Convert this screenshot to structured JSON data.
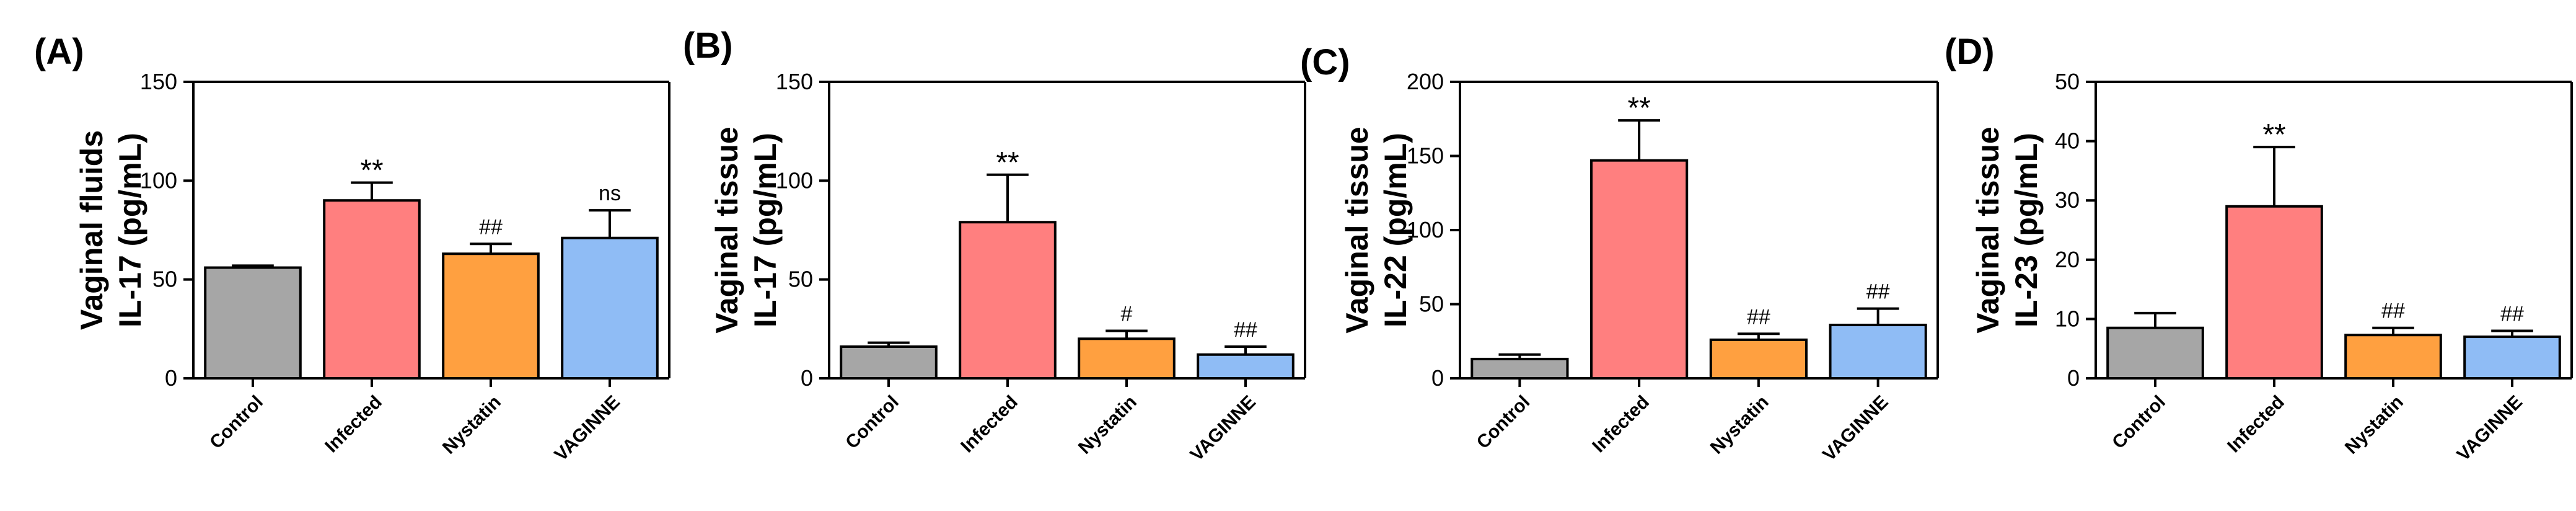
{
  "chart_data": [
    {
      "type": "bar",
      "panel_label": "(A)",
      "ylabel_lines": [
        "Vaginal fluids",
        "IL-17 (pg/mL)"
      ],
      "categories": [
        "Control",
        "Infected",
        "Nystatin",
        "VAGINNE"
      ],
      "values": [
        56,
        90,
        63,
        71
      ],
      "errors": [
        1,
        9,
        5,
        14
      ],
      "annotations": [
        "",
        "**",
        "##",
        "ns"
      ],
      "ylim": [
        0,
        150
      ],
      "yticks": [
        0,
        50,
        100,
        150
      ],
      "colors": [
        "#a6a6a6",
        "#ff7f7f",
        "#ffa040",
        "#8fbcf5"
      ]
    },
    {
      "type": "bar",
      "panel_label": "(B)",
      "ylabel_lines": [
        "Vaginal tissue",
        "IL-17 (pg/mL)"
      ],
      "categories": [
        "Control",
        "Infected",
        "Nystatin",
        "VAGINNE"
      ],
      "values": [
        16,
        79,
        20,
        12
      ],
      "errors": [
        2,
        24,
        4,
        4
      ],
      "annotations": [
        "",
        "**",
        "#",
        "##"
      ],
      "ylim": [
        0,
        150
      ],
      "yticks": [
        0,
        50,
        100,
        150
      ],
      "colors": [
        "#a6a6a6",
        "#ff7f7f",
        "#ffa040",
        "#8fbcf5"
      ]
    },
    {
      "type": "bar",
      "panel_label": "(C)",
      "ylabel_lines": [
        "Vaginal tissue",
        "IL-22 (pg/mL)"
      ],
      "categories": [
        "Control",
        "Infected",
        "Nystatin",
        "VAGINNE"
      ],
      "values": [
        13,
        147,
        26,
        36
      ],
      "errors": [
        3,
        27,
        4,
        11
      ],
      "annotations": [
        "",
        "**",
        "##",
        "##"
      ],
      "ylim": [
        0,
        200
      ],
      "yticks": [
        0,
        50,
        100,
        150,
        200
      ],
      "colors": [
        "#a6a6a6",
        "#ff7f7f",
        "#ffa040",
        "#8fbcf5"
      ]
    },
    {
      "type": "bar",
      "panel_label": "(D)",
      "ylabel_lines": [
        "Vaginal tissue",
        "IL-23 (pg/mL)"
      ],
      "categories": [
        "Control",
        "Infected",
        "Nystatin",
        "VAGINNE"
      ],
      "values": [
        8.5,
        29,
        7.3,
        7
      ],
      "errors": [
        2.5,
        10,
        1.2,
        1
      ],
      "annotations": [
        "",
        "**",
        "##",
        "##"
      ],
      "ylim": [
        0,
        50
      ],
      "yticks": [
        0,
        10,
        20,
        30,
        40,
        50
      ],
      "colors": [
        "#a6a6a6",
        "#ff7f7f",
        "#ffa040",
        "#8fbcf5"
      ]
    }
  ]
}
